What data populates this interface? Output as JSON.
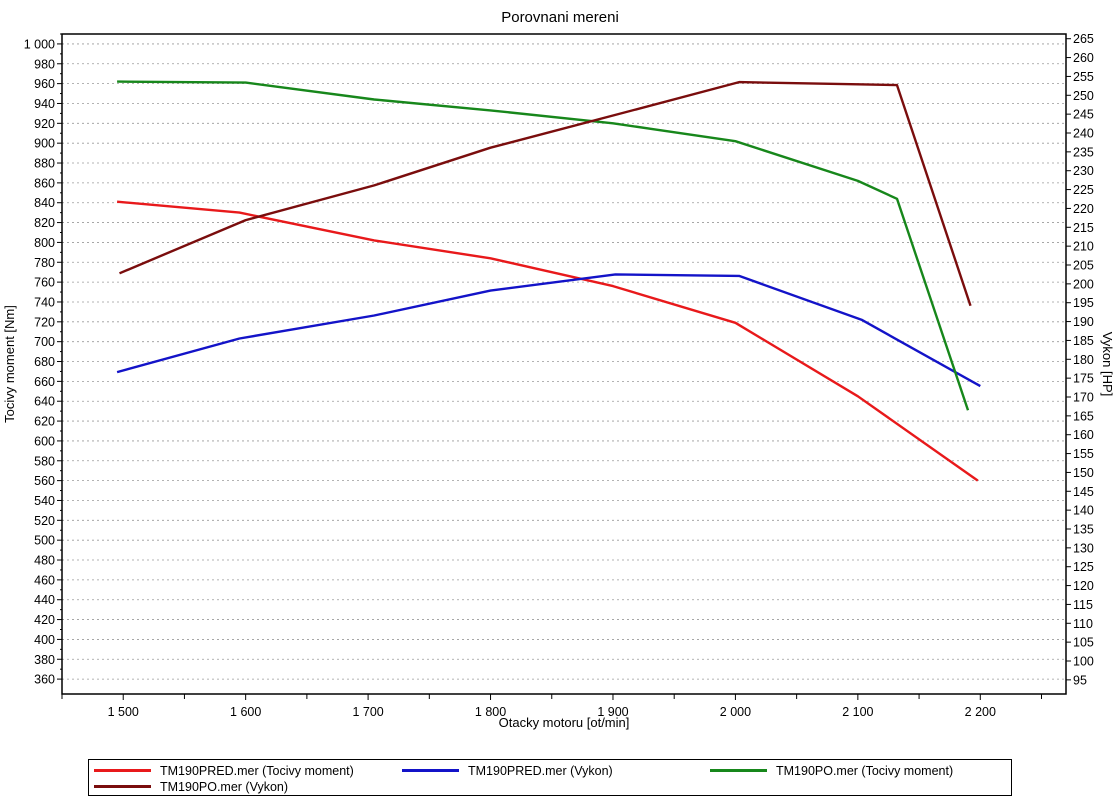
{
  "chart_data": {
    "type": "line",
    "title": "Porovnani mereni",
    "xlabel": "Otacky motoru [ot/min]",
    "ylabel_left": "Tocivy moment [Nm]",
    "ylabel_right": "Vykon [HP]",
    "xlim": [
      1450,
      2270
    ],
    "ylim_left": [
      345,
      1010
    ],
    "ylim_right": [
      91.25,
      266.25
    ],
    "x_ticks": [
      1500,
      1600,
      1700,
      1800,
      1900,
      2000,
      2100,
      2200
    ],
    "x_tick_labels": [
      "1 500",
      "1 600",
      "1 700",
      "1 800",
      "1 900",
      "2 000",
      "2 100",
      "2 200"
    ],
    "y_left_ticks": [
      360,
      380,
      400,
      420,
      440,
      460,
      480,
      500,
      520,
      540,
      560,
      580,
      600,
      620,
      640,
      660,
      680,
      700,
      720,
      740,
      760,
      780,
      800,
      820,
      840,
      860,
      880,
      900,
      920,
      940,
      960,
      980,
      1000
    ],
    "y_left_tick_labels": [
      "360",
      "380",
      "400",
      "420",
      "440",
      "460",
      "480",
      "500",
      "520",
      "540",
      "560",
      "580",
      "600",
      "620",
      "640",
      "660",
      "680",
      "700",
      "720",
      "740",
      "760",
      "780",
      "800",
      "820",
      "840",
      "860",
      "880",
      "900",
      "920",
      "940",
      "960",
      "980",
      "1 000"
    ],
    "y_right_ticks": [
      95,
      100,
      105,
      110,
      115,
      120,
      125,
      130,
      135,
      140,
      145,
      150,
      155,
      160,
      165,
      170,
      175,
      180,
      185,
      190,
      195,
      200,
      205,
      210,
      215,
      220,
      225,
      230,
      235,
      240,
      245,
      250,
      255,
      260,
      265
    ],
    "y_right_tick_labels": [
      "95",
      "100",
      "105",
      "110",
      "115",
      "120",
      "125",
      "130",
      "135",
      "140",
      "145",
      "150",
      "155",
      "160",
      "165",
      "170",
      "175",
      "180",
      "185",
      "190",
      "195",
      "200",
      "205",
      "210",
      "215",
      "220",
      "225",
      "230",
      "235",
      "240",
      "245",
      "250",
      "255",
      "260",
      "265"
    ],
    "grid": "horizontal-dotted",
    "legend_position": "bottom",
    "series": [
      {
        "name": "TM190PRED.mer  (Tocivy moment)",
        "axis": "left",
        "color": "#e8191b",
        "x": [
          1495,
          1595,
          1705,
          1800,
          1900,
          2000,
          2100,
          2198
        ],
        "y": [
          841,
          830,
          802,
          784,
          756,
          719,
          645,
          560
        ]
      },
      {
        "name": "TM190PRED.mer  (Vykon)",
        "axis": "right",
        "color": "#1313c8",
        "x": [
          1495,
          1595,
          1705,
          1800,
          1902,
          2003,
          2103,
          2200
        ],
        "y": [
          176.6,
          185.5,
          191.6,
          198.2,
          202.5,
          202.1,
          190.5,
          172.9
        ]
      },
      {
        "name": "TM190PO.mer  (Tocivy moment)",
        "axis": "left",
        "color": "#17871b",
        "x": [
          1495,
          1600,
          1705,
          1800,
          1900,
          2000,
          2100,
          2132,
          2190
        ],
        "y": [
          962,
          961,
          944,
          933,
          920,
          902,
          862,
          844,
          631
        ]
      },
      {
        "name": "TM190PO.mer  (Vykon)",
        "axis": "right",
        "color": "#7a0d0d",
        "x": [
          1497,
          1600,
          1705,
          1800,
          1902,
          2003,
          2100,
          2132,
          2192
        ],
        "y": [
          202.8,
          216.9,
          226.1,
          236.1,
          244.8,
          253.5,
          252.9,
          252.7,
          194.2
        ]
      }
    ]
  }
}
